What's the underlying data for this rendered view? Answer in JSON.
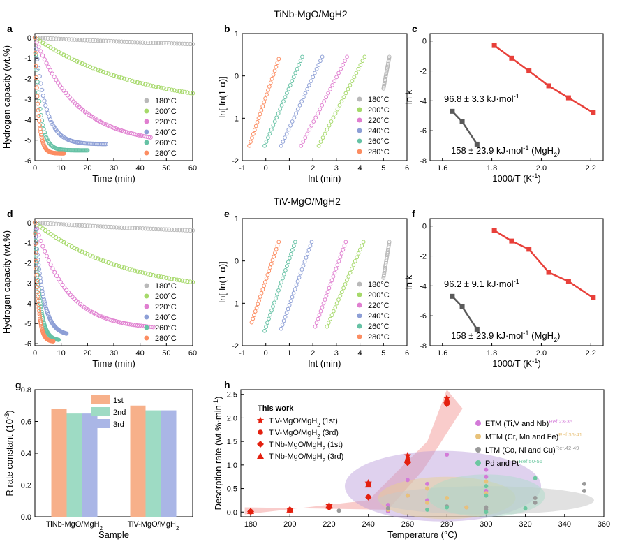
{
  "figure": {
    "title_top": "TiNb-MgO/MgH2",
    "title_mid": "TiV-MgO/MgH2"
  },
  "colors": {
    "180": "#b9b9b9",
    "200": "#a6d96a",
    "220": "#e07fd0",
    "240": "#8d9fd6",
    "260": "#66c2a5",
    "280": "#fc8d62",
    "fit_red": "#e8403a",
    "fit_gray": "#5a5a5a",
    "work": "#e4200f",
    "bar_1st": "#f7b08a",
    "bar_2nd": "#9edbc4",
    "bar_3rd": "#aab6e6"
  },
  "chart_data": [
    {
      "panel": "a",
      "type": "line",
      "xlabel": "Time (min)",
      "ylabel": "Hydrogen capacity (wt.%)",
      "xlim": [
        0,
        60
      ],
      "ylim": [
        -6,
        0.2
      ],
      "xticks": [
        "0",
        "10",
        "20",
        "30",
        "40",
        "50",
        "60"
      ],
      "yticks": [
        "0",
        "-1",
        "-2",
        "-3",
        "-4",
        "-5",
        "-6"
      ],
      "series": [
        {
          "name": "180°C",
          "final": -0.7,
          "tau": 100,
          "tend": 60
        },
        {
          "name": "200°C",
          "final": -3.5,
          "tau": 40,
          "tend": 60
        },
        {
          "name": "220°C",
          "final": -5.2,
          "tau": 16,
          "tend": 44
        },
        {
          "name": "240°C",
          "final": -5.2,
          "tau": 4,
          "tend": 27
        },
        {
          "name": "260°C",
          "final": -5.5,
          "tau": 2,
          "tend": 20
        },
        {
          "name": "280°C",
          "final": -5.65,
          "tau": 1.3,
          "tend": 11
        }
      ]
    },
    {
      "panel": "b",
      "type": "scatter",
      "xlabel": "lnt (min)",
      "ylabel": "ln[-ln(1-α)]",
      "xlim": [
        -1,
        6
      ],
      "ylim": [
        -2,
        1
      ],
      "xticks": [
        "-1",
        "0",
        "1",
        "2",
        "3",
        "4",
        "5",
        "6"
      ],
      "yticks": [
        "-2",
        "-1",
        "0",
        "1"
      ],
      "series": [
        {
          "name": "180°C",
          "x0": 5.0,
          "x1": 5.25,
          "y0": -0.3,
          "y1": 0.45
        },
        {
          "name": "200°C",
          "x0": 2.25,
          "x1": 4.2,
          "y0": -1.65,
          "y1": 0.45
        },
        {
          "name": "220°C",
          "x0": 1.5,
          "x1": 3.45,
          "y0": -1.65,
          "y1": 0.45
        },
        {
          "name": "240°C",
          "x0": 0.65,
          "x1": 2.4,
          "y0": -1.65,
          "y1": 0.45
        },
        {
          "name": "260°C",
          "x0": -0.05,
          "x1": 1.55,
          "y0": -1.65,
          "y1": 0.45
        },
        {
          "name": "280°C",
          "x0": -0.7,
          "x1": 0.55,
          "y0": -1.65,
          "y1": 0.4
        }
      ]
    },
    {
      "panel": "c",
      "type": "scatter",
      "xlabel": "1000/T (K-1)",
      "ylabel": "ln k",
      "xlim": [
        1.55,
        2.25
      ],
      "ylim": [
        -8,
        0.5
      ],
      "xticks": [
        "1.6",
        "1.8",
        "2.0",
        "2.2"
      ],
      "yticks": [
        "0",
        "-2",
        "-4",
        "-6",
        "-8"
      ],
      "annotations": [
        "96.8 ± 3.3 kJ·mol-1",
        "158 ± 23.9 kJ·mol-1 (MgH2)"
      ],
      "series": [
        {
          "name": "TiNb-MgO/MgH2",
          "x": [
            1.81,
            1.88,
            1.95,
            2.03,
            2.11,
            2.21
          ],
          "y": [
            -0.3,
            -1.15,
            -2.0,
            -3.0,
            -3.8,
            -4.8
          ]
        },
        {
          "name": "MgH2",
          "x": [
            1.64,
            1.68,
            1.74
          ],
          "y": [
            -4.7,
            -5.4,
            -6.9
          ]
        }
      ]
    },
    {
      "panel": "d",
      "type": "line",
      "xlabel": "Time (min)",
      "ylabel": "Hydrogen capacity (wt.%)",
      "xlim": [
        0,
        60
      ],
      "ylim": [
        -6.1,
        0.2
      ],
      "xticks": [
        "0",
        "10",
        "20",
        "30",
        "40",
        "50",
        "60"
      ],
      "yticks": [
        "0",
        "-1",
        "-2",
        "-3",
        "-4",
        "-5",
        "-6"
      ],
      "series": [
        {
          "name": "180°C",
          "final": -0.8,
          "tau": 90,
          "tend": 60
        },
        {
          "name": "200°C",
          "final": -3.6,
          "tau": 35,
          "tend": 60
        },
        {
          "name": "220°C",
          "final": -5.3,
          "tau": 12,
          "tend": 45
        },
        {
          "name": "240°C",
          "final": -5.6,
          "tau": 3,
          "tend": 12
        },
        {
          "name": "260°C",
          "final": -5.85,
          "tau": 1.8,
          "tend": 9
        },
        {
          "name": "280°C",
          "final": -5.9,
          "tau": 1.2,
          "tend": 7
        }
      ]
    },
    {
      "panel": "e",
      "type": "scatter",
      "xlabel": "lnt (min)",
      "ylabel": "ln[-ln(1-α)]",
      "xlim": [
        -1,
        6
      ],
      "ylim": [
        -2,
        1
      ],
      "xticks": [
        "-1",
        "0",
        "1",
        "2",
        "3",
        "4",
        "5",
        "6"
      ],
      "yticks": [
        "-2",
        "-1",
        "0",
        "1"
      ],
      "series": [
        {
          "name": "180°C",
          "x0": 5.0,
          "x1": 5.25,
          "y0": -0.4,
          "y1": 0.45
        },
        {
          "name": "200°C",
          "x0": 2.6,
          "x1": 4.15,
          "y0": -1.55,
          "y1": 0.45
        },
        {
          "name": "220°C",
          "x0": 2.1,
          "x1": 3.4,
          "y0": -1.55,
          "y1": 0.45
        },
        {
          "name": "240°C",
          "x0": 0.65,
          "x1": 1.95,
          "y0": -1.6,
          "y1": 0.45
        },
        {
          "name": "260°C",
          "x0": -0.05,
          "x1": 1.25,
          "y0": -1.65,
          "y1": 0.45
        },
        {
          "name": "280°C",
          "x0": -0.6,
          "x1": 0.55,
          "y0": -1.45,
          "y1": 0.45
        }
      ]
    },
    {
      "panel": "f",
      "type": "scatter",
      "xlabel": "1000/T (K-1)",
      "ylabel": "ln k",
      "xlim": [
        1.55,
        2.25
      ],
      "ylim": [
        -8,
        0.5
      ],
      "xticks": [
        "1.6",
        "1.8",
        "2.0",
        "2.2"
      ],
      "yticks": [
        "0",
        "-2",
        "-4",
        "-6",
        "-8"
      ],
      "annotations": [
        "96.2 ± 9.1 kJ·mol-1",
        "158 ± 23.9 kJ·mol-1 (MgH2)"
      ],
      "series": [
        {
          "name": "TiV-MgO/MgH2",
          "x": [
            1.81,
            1.88,
            1.95,
            2.03,
            2.11,
            2.21
          ],
          "y": [
            -0.3,
            -1.0,
            -1.55,
            -3.1,
            -3.7,
            -4.8
          ]
        },
        {
          "name": "MgH2",
          "x": [
            1.64,
            1.68,
            1.74
          ],
          "y": [
            -4.7,
            -5.4,
            -6.9
          ]
        }
      ]
    },
    {
      "panel": "g",
      "type": "bar",
      "xlabel": "Sample",
      "ylabel": "R rate constant (10-3)",
      "ylim": [
        0,
        0.8
      ],
      "yticks": [
        "0.0",
        "0.2",
        "0.4",
        "0.6",
        "0.8"
      ],
      "categories": [
        "TiNb-MgO/MgH2",
        "TiV-MgO/MgH2"
      ],
      "series": [
        {
          "name": "1st",
          "values": [
            0.68,
            0.7
          ]
        },
        {
          "name": "2nd",
          "values": [
            0.65,
            0.67
          ]
        },
        {
          "name": "3rd",
          "values": [
            0.65,
            0.67
          ]
        }
      ]
    },
    {
      "panel": "h",
      "type": "scatter",
      "xlabel": "Temperature (°C)",
      "ylabel": "Desorption rate (wt.%·min-1)",
      "xlim": [
        175,
        360
      ],
      "ylim": [
        -0.1,
        2.6
      ],
      "xticks": [
        "180",
        "200",
        "220",
        "240",
        "260",
        "280",
        "300",
        "320",
        "340",
        "360"
      ],
      "yticks": [
        "0.0",
        "0.5",
        "1.0",
        "1.5",
        "2.0",
        "2.5"
      ],
      "legend_title": "This work",
      "series": [
        {
          "name": "TiV-MgO/MgH2 (1st)",
          "marker": "star",
          "x": [
            180,
            200,
            220,
            240,
            260,
            280
          ],
          "y": [
            0.02,
            0.06,
            0.14,
            0.62,
            1.2,
            2.42
          ]
        },
        {
          "name": "TiV-MgO/MgH2 (3rd)",
          "marker": "circle",
          "x": [
            180,
            200,
            220,
            240,
            260,
            280
          ],
          "y": [
            0.01,
            0.05,
            0.12,
            0.6,
            1.1,
            2.35
          ]
        },
        {
          "name": "TiNb-MgO/MgH2 (1st)",
          "marker": "diamond",
          "x": [
            180,
            200,
            220,
            240,
            260,
            280
          ],
          "y": [
            0.01,
            0.04,
            0.1,
            0.32,
            1.05,
            2.3
          ]
        },
        {
          "name": "TiNb-MgO/MgH2 (3rd)",
          "marker": "triangle",
          "x": [
            180,
            200,
            220,
            240,
            260,
            280
          ],
          "y": [
            0.02,
            0.05,
            0.13,
            0.58,
            1.12,
            2.38
          ]
        }
      ],
      "references": [
        {
          "name": "ETM (Ti,V and Nb)",
          "ref": "Ref.23-35",
          "color": "#d37ad8",
          "x": [
            250,
            260,
            270,
            280,
            290,
            300,
            300,
            300,
            260,
            270,
            250
          ],
          "y": [
            0.15,
            0.68,
            0.6,
            1.22,
            0.1,
            0.9,
            0.75,
            0.45,
            0.35,
            0.25,
            0.02
          ]
        },
        {
          "name": "MTM (Cr, Mn and Fe)",
          "ref": "Ref.36-41",
          "color": "#e8c27a",
          "x": [
            250,
            260,
            270,
            280,
            300,
            300,
            290,
            270
          ],
          "y": [
            0.05,
            0.35,
            0.5,
            0.3,
            0.65,
            0.4,
            0.1,
            0.2
          ]
        },
        {
          "name": "LTM (Co, Ni and Cu)",
          "ref": "Ref.42-49",
          "color": "#9a9a9a",
          "x": [
            225,
            250,
            280,
            300,
            325,
            325,
            350,
            350,
            300
          ],
          "y": [
            0.03,
            0.08,
            0.12,
            0.1,
            0.3,
            0.2,
            0.6,
            0.45,
            0.05
          ]
        },
        {
          "name": "Pd and Pt",
          "ref": "Ref.50-55",
          "color": "#6cc7a0",
          "x": [
            270,
            280,
            300,
            300,
            320,
            325,
            300
          ],
          "y": [
            0.05,
            0.1,
            0.35,
            0.55,
            0.08,
            0.72,
            0.0
          ]
        }
      ]
    }
  ]
}
